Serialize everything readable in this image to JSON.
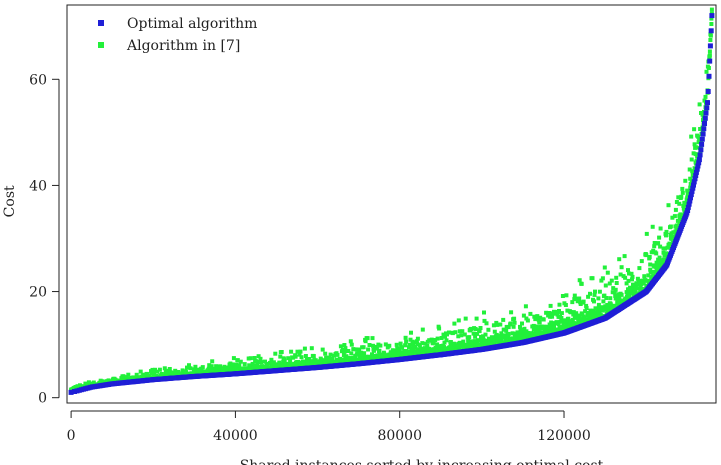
{
  "chart_data": {
    "type": "scatter",
    "xlabel": "Shared instances sorted by increasing optimal cost",
    "ylabel": "Cost",
    "xlim": [
      -1000,
      157000
    ],
    "ylim": [
      -1,
      74
    ],
    "xticks": [
      0,
      40000,
      80000,
      120000
    ],
    "xtick_labels": [
      "0",
      "40000",
      "80000",
      "120000"
    ],
    "yticks": [
      0,
      20,
      40,
      60
    ],
    "ytick_labels": [
      "0",
      "20",
      "40",
      "60"
    ],
    "grid": false,
    "legend_position": "top-left",
    "series": [
      {
        "name": "Optimal algorithm",
        "color": "#1f1fd6",
        "points": [
          [
            0,
            1.0
          ],
          [
            5000,
            2.0
          ],
          [
            10000,
            2.6
          ],
          [
            20000,
            3.4
          ],
          [
            30000,
            4.0
          ],
          [
            40000,
            4.5
          ],
          [
            50000,
            5.1
          ],
          [
            60000,
            5.7
          ],
          [
            70000,
            6.4
          ],
          [
            80000,
            7.2
          ],
          [
            90000,
            8.1
          ],
          [
            100000,
            9.1
          ],
          [
            110000,
            10.4
          ],
          [
            120000,
            12.2
          ],
          [
            130000,
            15.0
          ],
          [
            140000,
            20.0
          ],
          [
            145000,
            25.0
          ],
          [
            150000,
            35.0
          ],
          [
            153000,
            45.0
          ],
          [
            155000,
            56.0
          ],
          [
            156000,
            72.0
          ]
        ]
      },
      {
        "name": "Algorithm in [7]",
        "color": "#22f03a",
        "points": [
          [
            0,
            2.0
          ],
          [
            10000,
            3.5
          ],
          [
            20000,
            4.6
          ],
          [
            30000,
            5.5
          ],
          [
            40000,
            6.4
          ],
          [
            50000,
            7.3
          ],
          [
            60000,
            8.2
          ],
          [
            70000,
            9.3
          ],
          [
            80000,
            10.5
          ],
          [
            90000,
            11.8
          ],
          [
            100000,
            13.4
          ],
          [
            110000,
            15.2
          ],
          [
            120000,
            17.6
          ],
          [
            130000,
            21.0
          ],
          [
            140000,
            27.0
          ],
          [
            145000,
            32.0
          ],
          [
            150000,
            42.0
          ],
          [
            153000,
            52.0
          ],
          [
            155000,
            62.0
          ],
          [
            156000,
            73.0
          ]
        ]
      }
    ]
  }
}
